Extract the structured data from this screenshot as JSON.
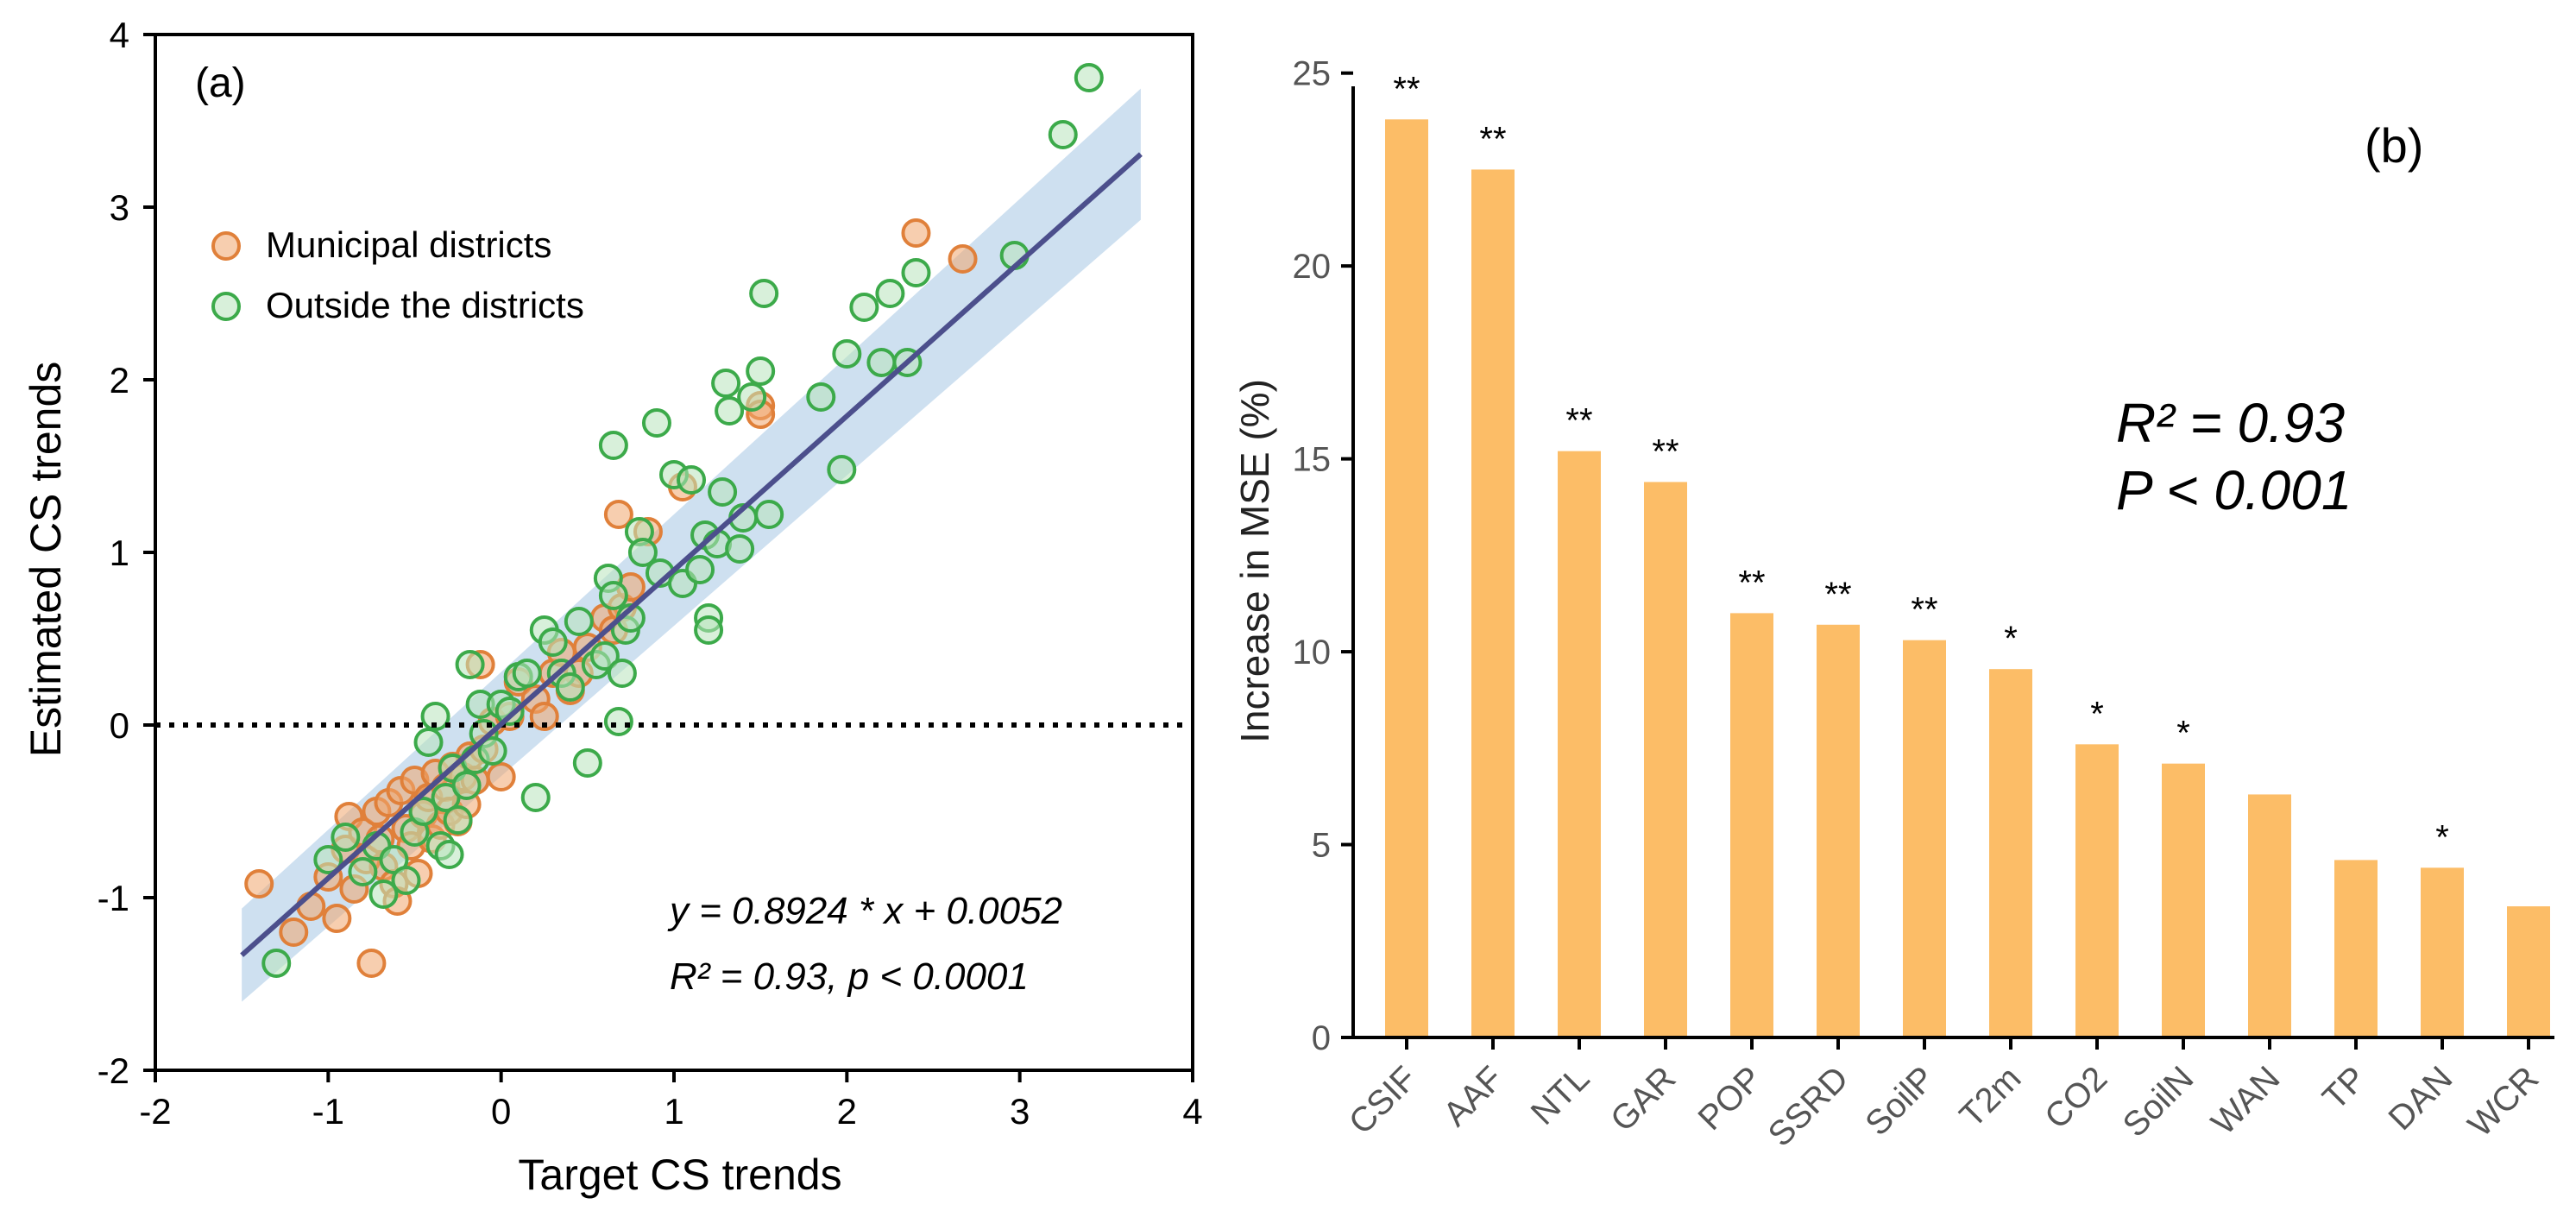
{
  "chart_data": [
    {
      "type": "scatter",
      "panel_label": "(a)",
      "xlabel": "Target CS trends",
      "ylabel": "Estimated CS trends",
      "xlim": [
        -2,
        4
      ],
      "ylim": [
        -2,
        4
      ],
      "xticks": [
        "-2",
        "-1",
        "0",
        "1",
        "2",
        "4"
      ],
      "xticks_values": [
        -2,
        -1,
        0,
        1,
        2,
        4
      ],
      "xticks3": {
        "label": "3",
        "value": 3
      },
      "yticks": [
        "-2",
        "-1",
        "0",
        "1",
        "2",
        "3",
        "4"
      ],
      "yticks_values": [
        -2,
        -1,
        0,
        1,
        2,
        3,
        4
      ],
      "legend_position": "upper-left",
      "equation": "y = 0.8924 * x + 0.0052",
      "r2_text": "R² = 0.93,  p < 0.0001",
      "fit": {
        "slope": 0.8924,
        "intercept": 0.0052,
        "x_range": [
          -1.5,
          3.7
        ],
        "ci_halfwidth": [
          0.27,
          0.38
        ]
      },
      "reference_line_y": 0,
      "series": [
        {
          "name": "Municipal districts",
          "color": "#f0a56e",
          "edge": "#e0803a",
          "points": [
            [
              -1.4,
              -0.92
            ],
            [
              -1.2,
              -1.2
            ],
            [
              -1.1,
              -1.05
            ],
            [
              -1.0,
              -0.88
            ],
            [
              -0.95,
              -1.12
            ],
            [
              -0.9,
              -0.72
            ],
            [
              -0.88,
              -0.53
            ],
            [
              -0.85,
              -0.95
            ],
            [
              -0.8,
              -0.62
            ],
            [
              -0.78,
              -0.78
            ],
            [
              -0.75,
              -1.38
            ],
            [
              -0.72,
              -0.5
            ],
            [
              -0.7,
              -0.66
            ],
            [
              -0.68,
              -0.82
            ],
            [
              -0.65,
              -0.45
            ],
            [
              -0.62,
              -0.92
            ],
            [
              -0.6,
              -1.02
            ],
            [
              -0.58,
              -0.38
            ],
            [
              -0.55,
              -0.6
            ],
            [
              -0.52,
              -0.7
            ],
            [
              -0.5,
              -0.32
            ],
            [
              -0.48,
              -0.86
            ],
            [
              -0.45,
              -0.52
            ],
            [
              -0.42,
              -0.42
            ],
            [
              -0.4,
              -0.66
            ],
            [
              -0.38,
              -0.28
            ],
            [
              -0.35,
              -0.58
            ],
            [
              -0.32,
              -0.36
            ],
            [
              -0.3,
              -0.5
            ],
            [
              -0.28,
              -0.24
            ],
            [
              -0.25,
              -0.56
            ],
            [
              -0.22,
              -0.3
            ],
            [
              -0.2,
              -0.46
            ],
            [
              -0.18,
              -0.18
            ],
            [
              -0.15,
              -0.32
            ],
            [
              -0.12,
              0.35
            ],
            [
              -0.1,
              -0.14
            ],
            [
              -0.05,
              0.02
            ],
            [
              0.0,
              -0.3
            ],
            [
              0.05,
              0.05
            ],
            [
              0.1,
              0.25
            ],
            [
              0.2,
              0.15
            ],
            [
              0.25,
              0.05
            ],
            [
              0.3,
              0.3
            ],
            [
              0.35,
              0.42
            ],
            [
              0.4,
              0.2
            ],
            [
              0.45,
              0.3
            ],
            [
              0.5,
              0.45
            ],
            [
              0.6,
              0.62
            ],
            [
              0.65,
              0.55
            ],
            [
              0.68,
              1.22
            ],
            [
              0.7,
              0.68
            ],
            [
              0.75,
              0.8
            ],
            [
              0.85,
              1.12
            ],
            [
              1.05,
              1.38
            ],
            [
              1.5,
              1.85
            ],
            [
              1.5,
              1.8
            ],
            [
              2.4,
              2.85
            ],
            [
              2.67,
              2.7
            ]
          ]
        },
        {
          "name": "Outside the districts",
          "color": "#b8e3bc",
          "edge": "#3caa4a",
          "points": [
            [
              -1.3,
              -1.38
            ],
            [
              -1.0,
              -0.78
            ],
            [
              -0.9,
              -0.65
            ],
            [
              -0.8,
              -0.85
            ],
            [
              -0.72,
              -0.7
            ],
            [
              -0.68,
              -0.98
            ],
            [
              -0.62,
              -0.78
            ],
            [
              -0.55,
              -0.9
            ],
            [
              -0.5,
              -0.62
            ],
            [
              -0.45,
              -0.5
            ],
            [
              -0.42,
              -0.1
            ],
            [
              -0.38,
              0.05
            ],
            [
              -0.35,
              -0.7
            ],
            [
              -0.32,
              -0.42
            ],
            [
              -0.3,
              -0.75
            ],
            [
              -0.28,
              -0.25
            ],
            [
              -0.25,
              -0.55
            ],
            [
              -0.2,
              -0.35
            ],
            [
              -0.18,
              0.35
            ],
            [
              -0.15,
              -0.2
            ],
            [
              -0.12,
              0.12
            ],
            [
              -0.1,
              -0.05
            ],
            [
              -0.05,
              -0.15
            ],
            [
              0.0,
              0.12
            ],
            [
              0.05,
              0.08
            ],
            [
              0.1,
              0.28
            ],
            [
              0.15,
              0.3
            ],
            [
              0.2,
              -0.42
            ],
            [
              0.25,
              0.55
            ],
            [
              0.3,
              0.48
            ],
            [
              0.35,
              0.3
            ],
            [
              0.4,
              0.22
            ],
            [
              0.45,
              0.6
            ],
            [
              0.5,
              -0.22
            ],
            [
              0.55,
              0.35
            ],
            [
              0.6,
              0.4
            ],
            [
              0.62,
              0.85
            ],
            [
              0.65,
              0.75
            ],
            [
              0.65,
              1.62
            ],
            [
              0.68,
              0.02
            ],
            [
              0.7,
              0.3
            ],
            [
              0.72,
              0.55
            ],
            [
              0.75,
              0.62
            ],
            [
              0.8,
              1.12
            ],
            [
              0.82,
              1.0
            ],
            [
              0.9,
              1.75
            ],
            [
              0.92,
              0.88
            ],
            [
              1.0,
              1.45
            ],
            [
              1.05,
              0.82
            ],
            [
              1.1,
              1.42
            ],
            [
              1.15,
              0.9
            ],
            [
              1.18,
              1.1
            ],
            [
              1.2,
              0.62
            ],
            [
              1.2,
              0.55
            ],
            [
              1.25,
              1.05
            ],
            [
              1.28,
              1.35
            ],
            [
              1.3,
              1.98
            ],
            [
              1.32,
              1.82
            ],
            [
              1.38,
              1.02
            ],
            [
              1.4,
              1.2
            ],
            [
              1.45,
              1.9
            ],
            [
              1.5,
              2.05
            ],
            [
              1.52,
              2.5
            ],
            [
              1.55,
              1.22
            ],
            [
              1.85,
              1.9
            ],
            [
              1.97,
              1.48
            ],
            [
              2.0,
              2.15
            ],
            [
              2.1,
              2.42
            ],
            [
              2.2,
              2.1
            ],
            [
              2.25,
              2.5
            ],
            [
              2.4,
              2.62
            ],
            [
              2.35,
              2.1
            ],
            [
              2.97,
              2.72
            ],
            [
              3.25,
              3.42
            ],
            [
              3.4,
              3.75
            ]
          ]
        }
      ]
    },
    {
      "type": "bar",
      "panel_label": "(b)",
      "ylabel": "Increase in MSE (%)",
      "xlabel": "",
      "ylim": [
        0,
        26
      ],
      "yticks": [
        "0",
        "5",
        "10",
        "15",
        "20",
        "25"
      ],
      "yticks_values": [
        0,
        5,
        10,
        15,
        20,
        25
      ],
      "bar_color": "#fcbd67",
      "categories": [
        "CSIF",
        "AAF",
        "NTL",
        "GAR",
        "POP",
        "SSRD",
        "SoilP",
        "T2m",
        "CO2",
        "SoilN",
        "WAN",
        "TP",
        "DAN",
        "WCR"
      ],
      "values": [
        23.8,
        22.5,
        15.2,
        14.4,
        11.0,
        10.7,
        10.3,
        9.55,
        7.6,
        7.1,
        6.3,
        4.6,
        4.4,
        3.4
      ],
      "significance": [
        "**",
        "**",
        "**",
        "**",
        "**",
        "**",
        "**",
        "*",
        "*",
        "*",
        "",
        "",
        "*",
        ""
      ],
      "stats_line1": "R² = 0.93",
      "stats_line2": "P < 0.001"
    }
  ]
}
